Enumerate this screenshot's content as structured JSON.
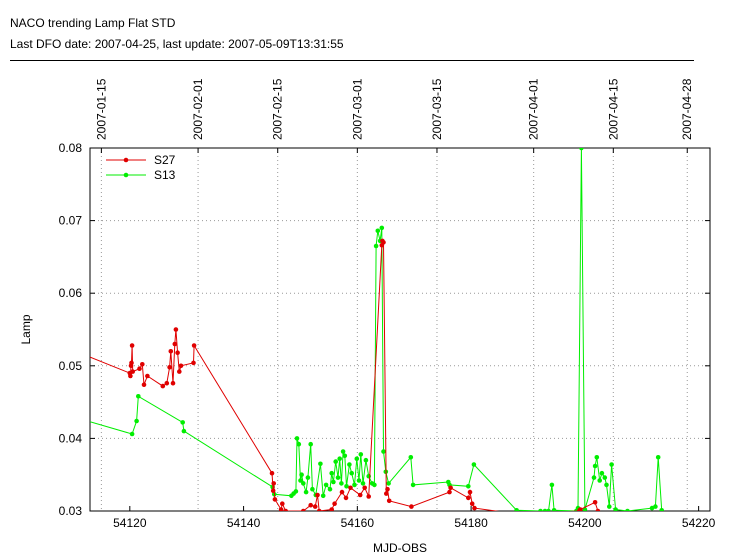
{
  "header": {
    "title": "NACO trending Lamp Flat STD",
    "subtitle": "Last DFO date: 2007-04-25, last update: 2007-05-09T13:31:55"
  },
  "chart_data": {
    "type": "line",
    "xlabel": "MJD-OBS",
    "ylabel": "Lamp",
    "xlim": [
      54113,
      54222
    ],
    "ylim": [
      0.03,
      0.08
    ],
    "x_ticks": [
      "54120",
      "54140",
      "54160",
      "54180",
      "54200",
      "54220"
    ],
    "y_ticks": [
      "0.03",
      "0.04",
      "0.05",
      "0.06",
      "0.07",
      "0.08"
    ],
    "date_ticks": [
      {
        "mjd": 54115,
        "label": "2007-01-15"
      },
      {
        "mjd": 54132,
        "label": "2007-02-01"
      },
      {
        "mjd": 54146,
        "label": "2007-02-15"
      },
      {
        "mjd": 54160,
        "label": "2007-03-01"
      },
      {
        "mjd": 54174,
        "label": "2007-03-15"
      },
      {
        "mjd": 54191,
        "label": "2007-04-01"
      },
      {
        "mjd": 54205,
        "label": "2007-04-15"
      },
      {
        "mjd": 54218,
        "label": "2007-04-28"
      }
    ],
    "grid": true,
    "legend_position": "top-left",
    "series": [
      {
        "name": "S27",
        "color": "#e00000",
        "points": [
          [
            54113,
            0.0512
          ],
          [
            54120.0,
            0.049
          ],
          [
            54120.1,
            0.0486
          ],
          [
            54120.2,
            0.05
          ],
          [
            54120.3,
            0.0504
          ],
          [
            54120.4,
            0.0528
          ],
          [
            54120.5,
            0.0492
          ],
          [
            54121.7,
            0.0496
          ],
          [
            54122.2,
            0.0502
          ],
          [
            54122.5,
            0.0474
          ],
          [
            54123.1,
            0.0486
          ],
          [
            54125.8,
            0.0472
          ],
          [
            54126.5,
            0.0476
          ],
          [
            54127.0,
            0.0498
          ],
          [
            54127.2,
            0.052
          ],
          [
            54127.6,
            0.0476
          ],
          [
            54127.9,
            0.053
          ],
          [
            54128.1,
            0.055
          ],
          [
            54128.4,
            0.0518
          ],
          [
            54128.7,
            0.0492
          ],
          [
            54129.0,
            0.05
          ],
          [
            54131.2,
            0.0504
          ],
          [
            54131.3,
            0.0528
          ],
          [
            54145.0,
            0.0352
          ],
          [
            54145.2,
            0.0328
          ],
          [
            54145.3,
            0.0338
          ],
          [
            54145.5,
            0.0316
          ],
          [
            54146.6,
            0.0302
          ],
          [
            54146.8,
            0.031
          ],
          [
            54147.4,
            0.03
          ],
          [
            54150.5,
            0.03
          ],
          [
            54151.8,
            0.0308
          ],
          [
            54152.6,
            0.0306
          ],
          [
            54153.0,
            0.0322
          ],
          [
            54153.3,
            0.03
          ],
          [
            54155.5,
            0.0302
          ],
          [
            54156.0,
            0.031
          ],
          [
            54157.3,
            0.0326
          ],
          [
            54158.0,
            0.0318
          ],
          [
            54158.8,
            0.0332
          ],
          [
            54160.5,
            0.0322
          ],
          [
            54161.3,
            0.0332
          ],
          [
            54162.0,
            0.032
          ],
          [
            54164.3,
            0.0666
          ],
          [
            54164.4,
            0.0672
          ],
          [
            54164.6,
            0.067
          ],
          [
            54165.1,
            0.0324
          ],
          [
            54165.3,
            0.033
          ],
          [
            54165.6,
            0.0314
          ],
          [
            54169.5,
            0.0306
          ],
          [
            54176.2,
            0.0326
          ],
          [
            54176.4,
            0.0332
          ],
          [
            54179.5,
            0.0318
          ],
          [
            54179.8,
            0.0326
          ],
          [
            54180.2,
            0.031
          ],
          [
            54180.6,
            0.0304
          ],
          [
            54188.0,
            0.0296
          ],
          [
            54199.0,
            0.03
          ],
          [
            54199.2,
            0.0302
          ],
          [
            54201.8,
            0.0312
          ],
          [
            54202.3,
            0.03
          ]
        ]
      },
      {
        "name": "S13",
        "color": "#00ee00",
        "points": [
          [
            54113,
            0.0423
          ],
          [
            54120.4,
            0.0406
          ],
          [
            54121.2,
            0.0424
          ],
          [
            54121.5,
            0.0458
          ],
          [
            54129.3,
            0.0422
          ],
          [
            54129.5,
            0.041
          ],
          [
            54145.1,
            0.0333
          ],
          [
            54145.4,
            0.0323
          ],
          [
            54148.4,
            0.0321
          ],
          [
            54148.8,
            0.0324
          ],
          [
            54149.2,
            0.0327
          ],
          [
            54149.4,
            0.04
          ],
          [
            54149.7,
            0.0392
          ],
          [
            54150.0,
            0.0342
          ],
          [
            54150.2,
            0.035
          ],
          [
            54150.5,
            0.0338
          ],
          [
            54151.0,
            0.0326
          ],
          [
            54151.3,
            0.0346
          ],
          [
            54151.8,
            0.0392
          ],
          [
            54152.1,
            0.033
          ],
          [
            54152.7,
            0.0322
          ],
          [
            54153.5,
            0.0365
          ],
          [
            54154.0,
            0.0321
          ],
          [
            54154.5,
            0.0336
          ],
          [
            54155.2,
            0.033
          ],
          [
            54155.5,
            0.0352
          ],
          [
            54155.8,
            0.034
          ],
          [
            54156.2,
            0.0368
          ],
          [
            54156.6,
            0.0346
          ],
          [
            54156.9,
            0.0372
          ],
          [
            54157.2,
            0.0338
          ],
          [
            54157.5,
            0.0382
          ],
          [
            54157.8,
            0.0376
          ],
          [
            54158.1,
            0.0334
          ],
          [
            54158.6,
            0.0364
          ],
          [
            54159.0,
            0.0352
          ],
          [
            54159.5,
            0.0336
          ],
          [
            54159.9,
            0.0372
          ],
          [
            54160.3,
            0.0342
          ],
          [
            54160.6,
            0.0378
          ],
          [
            54161.0,
            0.0338
          ],
          [
            54161.5,
            0.037
          ],
          [
            54162.0,
            0.0348
          ],
          [
            54162.6,
            0.0338
          ],
          [
            54163.0,
            0.0336
          ],
          [
            54163.3,
            0.0665
          ],
          [
            54163.6,
            0.0686
          ],
          [
            54164.0,
            0.0672
          ],
          [
            54164.3,
            0.069
          ],
          [
            54164.6,
            0.0382
          ],
          [
            54165.0,
            0.0354
          ],
          [
            54165.5,
            0.0338
          ],
          [
            54169.4,
            0.0374
          ],
          [
            54169.8,
            0.0336
          ],
          [
            54176.0,
            0.034
          ],
          [
            54176.2,
            0.0336
          ],
          [
            54179.5,
            0.0334
          ],
          [
            54180.5,
            0.0364
          ],
          [
            54188.0,
            0.0301
          ],
          [
            54192.2,
            0.03
          ],
          [
            54193.0,
            0.03
          ],
          [
            54193.6,
            0.03
          ],
          [
            54194.2,
            0.0336
          ],
          [
            54194.6,
            0.0301
          ],
          [
            54198.5,
            0.03
          ],
          [
            54198.8,
            0.0304
          ],
          [
            54199.4,
            0.08
          ],
          [
            54200.0,
            0.0302
          ],
          [
            54201.6,
            0.0346
          ],
          [
            54201.8,
            0.0362
          ],
          [
            54202.1,
            0.0374
          ],
          [
            54202.6,
            0.0342
          ],
          [
            54203.0,
            0.0352
          ],
          [
            54203.5,
            0.0346
          ],
          [
            54203.8,
            0.0336
          ],
          [
            54204.3,
            0.0306
          ],
          [
            54204.7,
            0.0364
          ],
          [
            54205.4,
            0.0302
          ],
          [
            54207.5,
            0.03
          ],
          [
            54211.8,
            0.0304
          ],
          [
            54212.4,
            0.0306
          ],
          [
            54212.9,
            0.0374
          ],
          [
            54213.5,
            0.0301
          ]
        ]
      }
    ]
  }
}
